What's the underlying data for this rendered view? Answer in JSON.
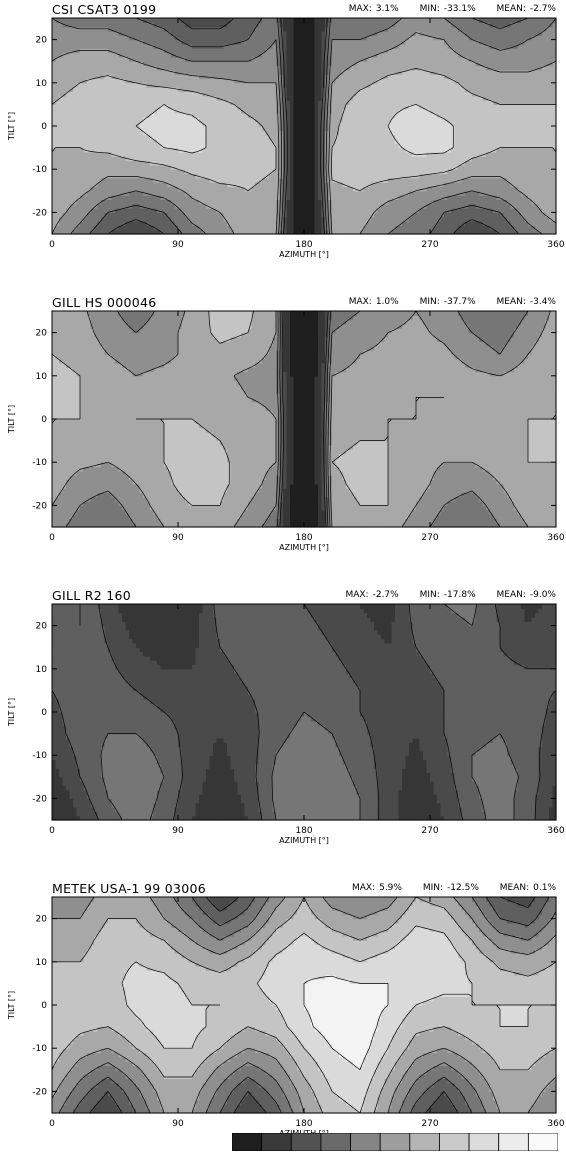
{
  "panels": [
    {
      "title": "CSI CSAT3 0199",
      "max_label": "MAX:",
      "max": "3.1%",
      "min_label": "MIN:",
      "min": "-33.1%",
      "mean_label": "MEAN:",
      "mean": "-2.7%"
    },
    {
      "title": "GILL HS 000046",
      "max_label": "MAX:",
      "max": "1.0%",
      "min_label": "MIN:",
      "min": "-37.7%",
      "mean_label": "MEAN:",
      "mean": "-3.4%"
    },
    {
      "title": "GILL R2 160",
      "max_label": "MAX:",
      "max": "-2.7%",
      "min_label": "MIN:",
      "min": "-17.8%",
      "mean_label": "MEAN:",
      "mean": "-9.0%"
    },
    {
      "title": "METEK USA-1 99 03006",
      "max_label": "MAX:",
      "max": "5.9%",
      "min_label": "MIN:",
      "min": "-12.5%",
      "mean_label": "MEAN:",
      "mean": "0.1%"
    }
  ],
  "axes": {
    "xlabel": "AZIMUTH [°]",
    "ylabel": "TILT [°]",
    "xticks": [
      "0",
      "90",
      "180",
      "270",
      "360"
    ],
    "yticks": [
      "20",
      "10",
      "0",
      "-10",
      "-20"
    ]
  },
  "chart_data": [
    {
      "type": "heatmap",
      "title": "CSI CSAT3 0199",
      "xlabel": "AZIMUTH [°]",
      "ylabel": "TILT [°]",
      "xlim": [
        0,
        360
      ],
      "ylim": [
        -25,
        25
      ],
      "x": [
        0,
        20,
        40,
        60,
        80,
        100,
        120,
        140,
        160,
        170,
        175,
        180,
        185,
        190,
        200,
        220,
        240,
        260,
        280,
        300,
        320,
        340,
        360
      ],
      "y": [
        -25,
        -20,
        -15,
        -10,
        -5,
        0,
        5,
        10,
        15,
        20,
        25
      ],
      "z": [
        [
          -4,
          -7,
          -10,
          -12,
          -10,
          -7,
          -5,
          -3,
          -4,
          -15,
          -28,
          -32,
          -28,
          -15,
          -4,
          -4,
          -6,
          -7,
          -9,
          -12,
          -10,
          -7,
          -5
        ],
        [
          -3,
          -5,
          -8,
          -9,
          -8,
          -5,
          -4,
          -2.5,
          -3,
          -14,
          -27,
          -31,
          -27,
          -14,
          -3,
          -3,
          -5,
          -6,
          -8,
          -9,
          -8,
          -5,
          -3
        ],
        [
          -2.5,
          -3.5,
          -5,
          -6,
          -5,
          -3.5,
          -2.5,
          -2,
          -2.5,
          -13,
          -27,
          -31,
          -27,
          -13,
          -2.5,
          -2,
          -3,
          -4,
          -5,
          -6,
          -5,
          -3.5,
          -2.5
        ],
        [
          -2,
          -2.5,
          -3.5,
          -3,
          -2.5,
          -1.5,
          -1,
          -1.5,
          -2,
          -12,
          -26,
          -30,
          -26,
          -12,
          -1.5,
          -1,
          -1,
          -1,
          -1.5,
          -3,
          -3.5,
          -2.5,
          -2
        ],
        [
          -2,
          -2,
          -1.5,
          -0.5,
          0,
          0.5,
          -0.5,
          -1,
          -2,
          -12,
          -26,
          -30,
          -26,
          -12,
          -2,
          -1,
          -0.5,
          0.5,
          0.5,
          -1,
          -2,
          -2,
          -2
        ],
        [
          -2,
          -1.5,
          -1,
          0,
          0.5,
          0.5,
          -0.5,
          -1.5,
          -2.5,
          -12,
          -26,
          -30,
          -26,
          -12,
          -2.5,
          -0.5,
          0,
          1.5,
          0.5,
          -1,
          -2,
          -1.5,
          -2
        ],
        [
          -2,
          -1.5,
          -1,
          -0.5,
          0,
          -0.5,
          -1.5,
          -2.5,
          -3,
          -13,
          -27,
          -30,
          -27,
          -13,
          -3,
          -1,
          -0.5,
          0,
          -1,
          -1.5,
          -2,
          -2,
          -2
        ],
        [
          -2.5,
          -2,
          -1.5,
          -2,
          -2.5,
          -3,
          -3.5,
          -4,
          -4,
          -14,
          -27,
          -31,
          -27,
          -14,
          -4,
          -2.5,
          -1.5,
          -1,
          -1.5,
          -2.5,
          -3,
          -3,
          -2.5
        ],
        [
          -4,
          -3,
          -3,
          -4,
          -5,
          -6,
          -6,
          -6,
          -5,
          -14,
          -28,
          -32,
          -28,
          -14,
          -5,
          -4,
          -3,
          -2.5,
          -3,
          -4,
          -5,
          -5,
          -4
        ],
        [
          -5,
          -5,
          -5,
          -6,
          -7,
          -9,
          -9,
          -8,
          -6,
          -15,
          -28,
          -32,
          -28,
          -15,
          -6,
          -6,
          -5,
          -3.5,
          -4,
          -6,
          -7,
          -6,
          -5
        ],
        [
          -6,
          -7,
          -7,
          -8,
          -9,
          -11,
          -11,
          -9,
          -7,
          -16,
          -29,
          -33,
          -29,
          -16,
          -7,
          -8,
          -7,
          -5,
          -6,
          -8,
          -9,
          -8,
          -6
        ]
      ]
    },
    {
      "type": "heatmap",
      "title": "GILL HS 000046",
      "xlabel": "AZIMUTH [°]",
      "ylabel": "TILT [°]",
      "xlim": [
        0,
        360
      ],
      "ylim": [
        -25,
        25
      ],
      "x": [
        0,
        20,
        40,
        60,
        80,
        100,
        120,
        140,
        160,
        170,
        175,
        180,
        185,
        190,
        200,
        220,
        240,
        260,
        280,
        300,
        320,
        340,
        360
      ],
      "y": [
        -25,
        -20,
        -15,
        -10,
        -5,
        0,
        5,
        10,
        15,
        20,
        25
      ],
      "z": [
        [
          -5,
          -7,
          -8,
          -6,
          -4,
          -3,
          -3,
          -5,
          -7,
          -18,
          -33,
          -37,
          -33,
          -18,
          -4,
          -3,
          -3,
          -5,
          -7,
          -8,
          -6,
          -4,
          -4
        ],
        [
          -4,
          -6,
          -7,
          -5,
          -3,
          -2,
          -2,
          -4,
          -6,
          -17,
          -32,
          -37,
          -32,
          -17,
          -3,
          -2,
          -2,
          -4,
          -6,
          -7,
          -5,
          -3,
          -3
        ],
        [
          -3,
          -5,
          -5.5,
          -4,
          -2.5,
          -1,
          -1.5,
          -3,
          -5,
          -16,
          -32,
          -36,
          -32,
          -16,
          -2.5,
          -1.5,
          -2,
          -3,
          -5,
          -5.5,
          -4,
          -2.5,
          -2.5
        ],
        [
          -2.5,
          -3.5,
          -4,
          -3,
          -2,
          -1,
          -1.5,
          -3,
          -4,
          -16,
          -31,
          -36,
          -31,
          -16,
          -2,
          -1.5,
          -2,
          -3,
          -4,
          -4,
          -3,
          -2,
          -2
        ],
        [
          -2,
          -2.5,
          -3,
          -2.5,
          -2,
          -1.5,
          -2,
          -3,
          -4,
          -15,
          -31,
          -36,
          -31,
          -15,
          -2.5,
          -2,
          -2,
          -2.5,
          -3,
          -3,
          -2.5,
          -2,
          -2
        ],
        [
          -2,
          -2,
          -2.5,
          -2,
          -2,
          -2,
          -2.5,
          -3,
          -4,
          -15,
          -31,
          -36,
          -31,
          -15,
          -3,
          -2.5,
          -2,
          -2,
          -2.5,
          -2.5,
          -2.5,
          -2,
          -2
        ],
        [
          -1.5,
          -2,
          -2.5,
          -3,
          -2.5,
          -2.5,
          -3,
          -4,
          -4.5,
          -16,
          -31,
          -36,
          -31,
          -16,
          -3.5,
          -3,
          -2.5,
          -2,
          -2,
          -2.5,
          -3,
          -2.5,
          -2
        ],
        [
          -1.5,
          -2,
          -3,
          -4,
          -3.5,
          -3,
          -3.5,
          -4.5,
          -5,
          -16,
          -32,
          -36,
          -32,
          -16,
          -4,
          -3.5,
          -3,
          -2.5,
          -2.5,
          -3.5,
          -4,
          -3,
          -2
        ],
        [
          -2,
          -2.5,
          -4,
          -5,
          -4.5,
          -3.5,
          -2.5,
          -3,
          -4.5,
          -17,
          -32,
          -37,
          -32,
          -17,
          -5,
          -4,
          -3.5,
          -3,
          -3.5,
          -5,
          -6,
          -4,
          -2.5
        ],
        [
          -2.5,
          -3,
          -5,
          -6,
          -5,
          -3,
          -1.5,
          -2,
          -4,
          -17,
          -33,
          -37,
          -33,
          -17,
          -6,
          -5,
          -4,
          -3.5,
          -4.5,
          -6,
          -7,
          -5,
          -3
        ],
        [
          -3,
          -3.5,
          -5.5,
          -7,
          -5.5,
          -3.5,
          -1,
          -1.5,
          -4,
          -18,
          -33,
          -37,
          -33,
          -18,
          -7,
          -6,
          -5,
          -4,
          -5,
          -7,
          -8,
          -6,
          -3.5
        ]
      ]
    },
    {
      "type": "heatmap",
      "title": "GILL R2 160",
      "xlabel": "AZIMUTH [°]",
      "ylabel": "TILT [°]",
      "xlim": [
        0,
        360
      ],
      "ylim": [
        -25,
        25
      ],
      "x": [
        0,
        20,
        40,
        60,
        80,
        100,
        120,
        140,
        160,
        180,
        200,
        220,
        240,
        260,
        280,
        300,
        320,
        340,
        360
      ],
      "y": [
        -25,
        -20,
        -15,
        -10,
        -5,
        0,
        5,
        10,
        15,
        20,
        25
      ],
      "z": [
        [
          -15,
          -12,
          -9,
          -7,
          -9,
          -12,
          -14,
          -12,
          -8,
          -6.5,
          -6,
          -8,
          -11,
          -14,
          -12,
          -9,
          -7,
          -9,
          -13
        ],
        [
          -14,
          -11,
          -8,
          -6.5,
          -8.5,
          -11.5,
          -13.5,
          -11.5,
          -7.5,
          -6.5,
          -6.5,
          -8,
          -11,
          -13.5,
          -11.5,
          -8.5,
          -7,
          -9,
          -12.5
        ],
        [
          -13,
          -10,
          -7.5,
          -6.5,
          -8,
          -11,
          -13,
          -11,
          -7.5,
          -6.5,
          -7,
          -8.5,
          -11,
          -13,
          -11,
          -8,
          -7,
          -8.5,
          -12
        ],
        [
          -12,
          -9.5,
          -7.5,
          -7,
          -8.5,
          -11,
          -12.5,
          -11,
          -8,
          -7,
          -7.5,
          -9,
          -11,
          -12.5,
          -10.5,
          -8,
          -7.5,
          -9,
          -11.5
        ],
        [
          -11,
          -9,
          -8,
          -8,
          -9,
          -11,
          -12,
          -11,
          -8.5,
          -7.5,
          -8,
          -9.5,
          -11,
          -12,
          -10,
          -8.5,
          -8,
          -9,
          -11
        ],
        [
          -10.5,
          -9,
          -8.5,
          -9,
          -10,
          -11,
          -11.5,
          -10.5,
          -9,
          -8,
          -8.5,
          -10,
          -11,
          -11.5,
          -10,
          -9,
          -8.5,
          -9,
          -10.5
        ],
        [
          -10,
          -9,
          -9,
          -10,
          -11,
          -11.5,
          -11,
          -10,
          -9,
          -8.5,
          -9,
          -10,
          -11,
          -11,
          -10,
          -9,
          -9,
          -9.5,
          -10
        ],
        [
          -9.5,
          -9,
          -9.5,
          -11,
          -12,
          -12,
          -10.5,
          -9.5,
          -9,
          -9,
          -9.5,
          -10.5,
          -11.5,
          -10.5,
          -9.5,
          -9,
          -9.5,
          -10,
          -10
        ],
        [
          -9,
          -8.5,
          -10,
          -12,
          -13,
          -12.5,
          -10,
          -9,
          -8.5,
          -9,
          -10,
          -11,
          -12,
          -10,
          -9,
          -8.5,
          -10,
          -11,
          -10.5
        ],
        [
          -9.5,
          -8,
          -10.5,
          -13,
          -14,
          -13,
          -9.5,
          -8.5,
          -8.5,
          -9.5,
          -10.5,
          -11.5,
          -12.5,
          -9.5,
          -8.5,
          -8,
          -10,
          -12,
          -11
        ],
        [
          -10,
          -8,
          -11,
          -14,
          -15,
          -13.5,
          -9,
          -8,
          -8.5,
          -10,
          -11,
          -12,
          -13,
          -9,
          -8,
          -7.5,
          -10.5,
          -12.5,
          -11.5
        ]
      ]
    },
    {
      "type": "heatmap",
      "title": "METEK USA-1 99 03006",
      "xlabel": "AZIMUTH [°]",
      "ylabel": "TILT [°]",
      "xlim": [
        0,
        360
      ],
      "ylim": [
        -25,
        25
      ],
      "x": [
        0,
        20,
        40,
        60,
        80,
        100,
        120,
        140,
        160,
        180,
        200,
        220,
        240,
        260,
        280,
        300,
        320,
        340,
        360
      ],
      "y": [
        -25,
        -20,
        -15,
        -10,
        -5,
        0,
        5,
        10,
        15,
        20,
        25
      ],
      "z": [
        [
          -5,
          -9,
          -12,
          -8,
          -4,
          -4,
          -8,
          -12,
          -9,
          -4,
          -1,
          0,
          -4,
          -9,
          -12,
          -8,
          -4,
          -4,
          -6
        ],
        [
          -3.5,
          -7,
          -10,
          -6.5,
          -3,
          -3,
          -6.5,
          -10,
          -7,
          -3,
          0,
          1,
          -3,
          -7,
          -10,
          -6.5,
          -3,
          -3,
          -5
        ],
        [
          -2,
          -5,
          -7,
          -4.5,
          -1.5,
          -1.5,
          -4.5,
          -7,
          -5,
          -1.5,
          1,
          2,
          -1.5,
          -5,
          -7,
          -4.5,
          -2,
          -2,
          -3.5
        ],
        [
          -1,
          -3,
          -4,
          -2,
          0,
          0,
          -2,
          -4,
          -3,
          0,
          2,
          3,
          0,
          -3,
          -4,
          -2.5,
          -1,
          -1,
          -2
        ],
        [
          0,
          -1.5,
          -2,
          -0.5,
          1,
          0.5,
          -0.5,
          -2,
          -1,
          1.5,
          3,
          3.5,
          1,
          -1.5,
          -2,
          -1,
          0,
          0,
          -1
        ],
        [
          0,
          -1,
          -1,
          0.5,
          1,
          0,
          0,
          -1,
          0,
          2,
          3,
          3,
          2,
          0,
          -0.5,
          0,
          0,
          0,
          0
        ],
        [
          -1,
          -1.5,
          -0.5,
          0.5,
          0.5,
          -0.5,
          -1,
          -0.5,
          1,
          2,
          2.5,
          2,
          2,
          1,
          0.5,
          0,
          -1,
          -1.5,
          -1
        ],
        [
          -2,
          -2,
          -0.5,
          0,
          -0.5,
          -2,
          -3,
          -1.5,
          0.5,
          1.5,
          1,
          0,
          1,
          2,
          1.5,
          -0.5,
          -2.5,
          -3,
          -2
        ],
        [
          -3,
          -3,
          -1,
          -1,
          -2,
          -4,
          -6,
          -4,
          -1,
          0.5,
          -1,
          -2,
          -1,
          1,
          0.5,
          -2,
          -5,
          -6,
          -3.5
        ],
        [
          -4,
          -4,
          -2,
          -2,
          -4,
          -6,
          -9,
          -7,
          -3,
          -1,
          -3,
          -4,
          -3,
          -0.5,
          -1,
          -4,
          -8,
          -9,
          -5.5
        ],
        [
          -5,
          -5,
          -3,
          -3,
          -5,
          -8,
          -12,
          -9,
          -5,
          -2,
          -5,
          -6,
          -5,
          -2,
          -3,
          -6,
          -10,
          -11,
          -7
        ]
      ]
    }
  ],
  "colorbar": {
    "shades": [
      "#1e1e1e",
      "#3a3a3a",
      "#525252",
      "#6a6a6a",
      "#858585",
      "#9d9d9d",
      "#b5b5b5",
      "#cacaca",
      "#dcdcdc",
      "#ececec",
      "#fafafa"
    ]
  }
}
